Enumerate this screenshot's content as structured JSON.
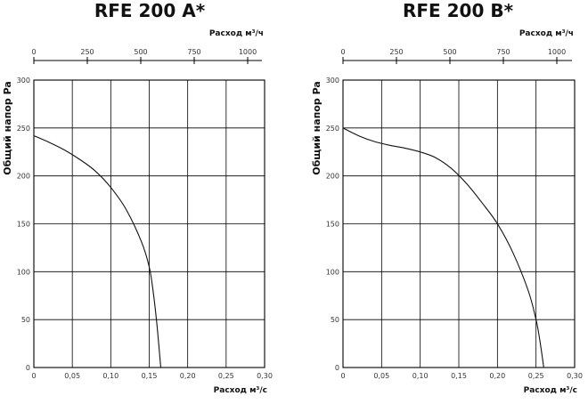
{
  "chart_data": [
    {
      "type": "line",
      "title": "RFE 200 A*",
      "top_axis_label": "Расход м³/ч",
      "top_axis_ticks": [
        "0",
        "250",
        "500",
        "750",
        "1000"
      ],
      "top_axis_values": [
        0,
        250,
        500,
        750,
        1000
      ],
      "xlabel": "Расход м³/с",
      "ylabel": "Общий напор Pa",
      "x_ticks": [
        "0",
        "0,05",
        "0,10",
        "0,15",
        "0,20",
        "0,25",
        "0,30"
      ],
      "x_tick_values": [
        0,
        0.05,
        0.1,
        0.15,
        0.2,
        0.25,
        0.3
      ],
      "y_ticks": [
        "0",
        "50",
        "100",
        "150",
        "200",
        "250",
        "300"
      ],
      "y_tick_values": [
        0,
        50,
        100,
        150,
        200,
        250,
        300
      ],
      "xlim": [
        0,
        0.3
      ],
      "ylim": [
        0,
        300
      ],
      "grid": true,
      "series": [
        {
          "x": [
            0,
            0.02,
            0.04,
            0.06,
            0.08,
            0.1,
            0.12,
            0.14,
            0.15,
            0.155,
            0.16,
            0.165
          ],
          "y": [
            242,
            235,
            227,
            217,
            205,
            188,
            165,
            131,
            105,
            80,
            45,
            0
          ]
        }
      ]
    },
    {
      "type": "line",
      "title": "RFE 200 B*",
      "top_axis_label": "Расход м³/ч",
      "top_axis_ticks": [
        "0",
        "250",
        "500",
        "750",
        "1000"
      ],
      "top_axis_values": [
        0,
        250,
        500,
        750,
        1000
      ],
      "xlabel": "Расход м³/с",
      "ylabel": "Общий напор Pa",
      "x_ticks": [
        "0",
        "0,05",
        "0,10",
        "0,15",
        "0,20",
        "0,25",
        "0,30"
      ],
      "x_tick_values": [
        0,
        0.05,
        0.1,
        0.15,
        0.2,
        0.25,
        0.3
      ],
      "y_ticks": [
        "0",
        "50",
        "100",
        "150",
        "200",
        "250",
        "300"
      ],
      "y_tick_values": [
        0,
        50,
        100,
        150,
        200,
        250,
        300
      ],
      "xlim": [
        0,
        0.3
      ],
      "ylim": [
        0,
        300
      ],
      "grid": true,
      "series": [
        {
          "x": [
            0,
            0.02,
            0.04,
            0.06,
            0.08,
            0.1,
            0.12,
            0.14,
            0.16,
            0.18,
            0.2,
            0.22,
            0.24,
            0.25,
            0.255,
            0.26
          ],
          "y": [
            250,
            242,
            236,
            232,
            229,
            225,
            219,
            208,
            192,
            172,
            150,
            120,
            80,
            50,
            28,
            0
          ]
        }
      ]
    }
  ]
}
